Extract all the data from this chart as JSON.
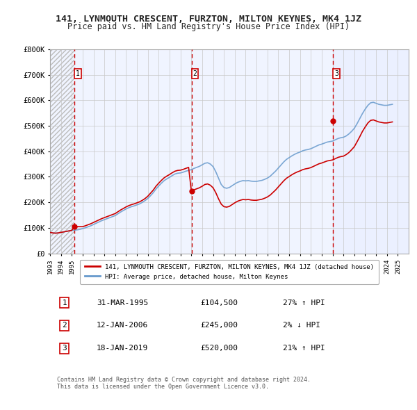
{
  "title": "141, LYNMOUTH CRESCENT, FURZTON, MILTON KEYNES, MK4 1JZ",
  "subtitle": "Price paid vs. HM Land Registry's House Price Index (HPI)",
  "ylabel_ticks": [
    "£0",
    "£100K",
    "£200K",
    "£300K",
    "£400K",
    "£500K",
    "£600K",
    "£700K",
    "£800K"
  ],
  "ytick_values": [
    0,
    100000,
    200000,
    300000,
    400000,
    500000,
    600000,
    700000,
    800000
  ],
  "ylim": [
    0,
    800000
  ],
  "xlim_start": 1993.0,
  "xlim_end": 2026.0,
  "xtick_years": [
    1993,
    1994,
    1995,
    1996,
    1997,
    1998,
    1999,
    2000,
    2001,
    2002,
    2003,
    2004,
    2005,
    2006,
    2007,
    2008,
    2009,
    2010,
    2011,
    2012,
    2013,
    2014,
    2015,
    2016,
    2017,
    2018,
    2019,
    2020,
    2021,
    2022,
    2023,
    2024,
    2025
  ],
  "background_color": "#ffffff",
  "plot_bg_color": "#f0f4ff",
  "hatch_color": "#c8c8c8",
  "grid_color": "#c8c8c8",
  "red_line_color": "#cc0000",
  "blue_line_color": "#6699cc",
  "transaction_color": "#cc0000",
  "dashed_line_color": "#cc0000",
  "transactions": [
    {
      "year": 1995.25,
      "price": 104500,
      "label": "1"
    },
    {
      "year": 2006.04,
      "price": 245000,
      "label": "2"
    },
    {
      "year": 2019.05,
      "price": 520000,
      "label": "3"
    }
  ],
  "legend_red_label": "141, LYNMOUTH CRESCENT, FURZTON, MILTON KEYNES, MK4 1JZ (detached house)",
  "legend_blue_label": "HPI: Average price, detached house, Milton Keynes",
  "table_rows": [
    {
      "num": "1",
      "date": "31-MAR-1995",
      "price": "£104,500",
      "hpi": "27% ↑ HPI"
    },
    {
      "num": "2",
      "date": "12-JAN-2006",
      "price": "£245,000",
      "hpi": "2% ↓ HPI"
    },
    {
      "num": "3",
      "date": "18-JAN-2019",
      "price": "£520,000",
      "hpi": "21% ↑ HPI"
    }
  ],
  "footer": "Contains HM Land Registry data © Crown copyright and database right 2024.\nThis data is licensed under the Open Government Licence v3.0.",
  "hpi_data": {
    "years": [
      1993.0,
      1993.25,
      1993.5,
      1993.75,
      1994.0,
      1994.25,
      1994.5,
      1994.75,
      1995.0,
      1995.25,
      1995.5,
      1995.75,
      1996.0,
      1996.25,
      1996.5,
      1996.75,
      1997.0,
      1997.25,
      1997.5,
      1997.75,
      1998.0,
      1998.25,
      1998.5,
      1998.75,
      1999.0,
      1999.25,
      1999.5,
      1999.75,
      2000.0,
      2000.25,
      2000.5,
      2000.75,
      2001.0,
      2001.25,
      2001.5,
      2001.75,
      2002.0,
      2002.25,
      2002.5,
      2002.75,
      2003.0,
      2003.25,
      2003.5,
      2003.75,
      2004.0,
      2004.25,
      2004.5,
      2004.75,
      2005.0,
      2005.25,
      2005.5,
      2005.75,
      2006.0,
      2006.25,
      2006.5,
      2006.75,
      2007.0,
      2007.25,
      2007.5,
      2007.75,
      2008.0,
      2008.25,
      2008.5,
      2008.75,
      2009.0,
      2009.25,
      2009.5,
      2009.75,
      2010.0,
      2010.25,
      2010.5,
      2010.75,
      2011.0,
      2011.25,
      2011.5,
      2011.75,
      2012.0,
      2012.25,
      2012.5,
      2012.75,
      2013.0,
      2013.25,
      2013.5,
      2013.75,
      2014.0,
      2014.25,
      2014.5,
      2014.75,
      2015.0,
      2015.25,
      2015.5,
      2015.75,
      2016.0,
      2016.25,
      2016.5,
      2016.75,
      2017.0,
      2017.25,
      2017.5,
      2017.75,
      2018.0,
      2018.25,
      2018.5,
      2018.75,
      2019.0,
      2019.25,
      2019.5,
      2019.75,
      2020.0,
      2020.25,
      2020.5,
      2020.75,
      2021.0,
      2021.25,
      2021.5,
      2021.75,
      2022.0,
      2022.25,
      2022.5,
      2022.75,
      2023.0,
      2023.25,
      2023.5,
      2023.75,
      2024.0,
      2024.25,
      2024.5
    ],
    "values": [
      82000,
      80000,
      79000,
      80000,
      82000,
      84000,
      86000,
      88000,
      90000,
      91000,
      92000,
      94000,
      97000,
      100000,
      104000,
      108000,
      113000,
      118000,
      123000,
      128000,
      132000,
      136000,
      140000,
      144000,
      148000,
      155000,
      162000,
      168000,
      174000,
      179000,
      183000,
      186000,
      190000,
      194000,
      200000,
      207000,
      215000,
      226000,
      238000,
      252000,
      264000,
      275000,
      285000,
      292000,
      298000,
      305000,
      311000,
      314000,
      315000,
      318000,
      322000,
      325000,
      328000,
      333000,
      337000,
      341000,
      347000,
      353000,
      355000,
      350000,
      340000,
      320000,
      295000,
      270000,
      258000,
      255000,
      258000,
      265000,
      272000,
      278000,
      282000,
      285000,
      284000,
      285000,
      283000,
      282000,
      282000,
      284000,
      286000,
      290000,
      295000,
      302000,
      312000,
      322000,
      334000,
      346000,
      358000,
      368000,
      375000,
      382000,
      388000,
      393000,
      397000,
      402000,
      405000,
      407000,
      410000,
      415000,
      420000,
      425000,
      428000,
      432000,
      436000,
      438000,
      440000,
      445000,
      450000,
      453000,
      455000,
      460000,
      468000,
      478000,
      490000,
      508000,
      528000,
      548000,
      565000,
      580000,
      590000,
      592000,
      588000,
      584000,
      582000,
      580000,
      580000,
      582000,
      584000
    ],
    "red_line_values": [
      82000,
      80000,
      79000,
      80000,
      82000,
      84000,
      86000,
      88000,
      90000,
      104500,
      104500,
      104500,
      104500,
      108000,
      112000,
      116000,
      121000,
      126000,
      131000,
      136000,
      140000,
      144000,
      148000,
      152000,
      156000,
      163000,
      170000,
      176000,
      182000,
      187000,
      191000,
      194000,
      198000,
      202000,
      208000,
      215000,
      224000,
      236000,
      248000,
      263000,
      275000,
      286000,
      296000,
      303000,
      309000,
      316000,
      322000,
      325000,
      326000,
      329000,
      333000,
      337000,
      245000,
      249000,
      253000,
      257000,
      263000,
      270000,
      272000,
      267000,
      257000,
      238000,
      214000,
      193000,
      183000,
      181000,
      184000,
      191000,
      198000,
      204000,
      208000,
      211000,
      210000,
      211000,
      209000,
      208000,
      208000,
      210000,
      212000,
      216000,
      221000,
      228000,
      238000,
      248000,
      260000,
      272000,
      284000,
      294000,
      301000,
      308000,
      314000,
      319000,
      323000,
      328000,
      331000,
      333000,
      336000,
      341000,
      346000,
      351000,
      354000,
      358000,
      362000,
      364000,
      366000,
      371000,
      376000,
      379000,
      381000,
      387000,
      395000,
      406000,
      418000,
      437000,
      457000,
      478000,
      495000,
      511000,
      521000,
      523000,
      519000,
      515000,
      513000,
      511000,
      511000,
      513000,
      515000
    ]
  }
}
